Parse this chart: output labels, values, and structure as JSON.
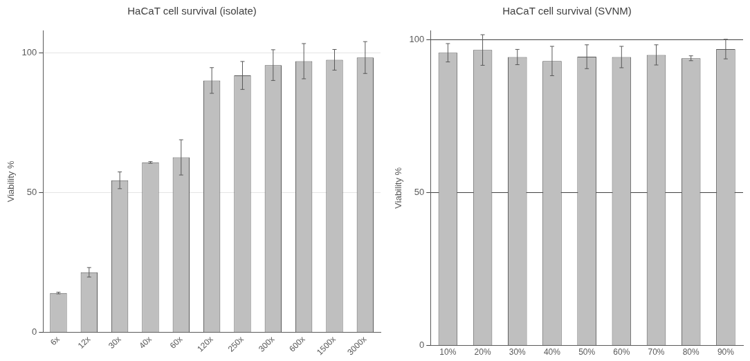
{
  "chart_data": [
    {
      "type": "bar",
      "title": "HaCaT cell survival (isolate)",
      "ylabel": "Viability %",
      "categories": [
        "6x",
        "12x",
        "30x",
        "40x",
        "60x",
        "120x",
        "250x",
        "300x",
        "600x",
        "1500x",
        "3000x"
      ],
      "series": [
        {
          "color": "#bfbfbf",
          "values": [
            14.1,
            21.5,
            54.4,
            60.8,
            62.6,
            90.1,
            91.9,
            95.6,
            97,
            97.5,
            98.3
          ],
          "errors": [
            0.3,
            1.7,
            3,
            0.3,
            6.3,
            4.6,
            5,
            5.5,
            6.3,
            3.7,
            5.7
          ]
        }
      ],
      "ylim": [
        0,
        108
      ],
      "yticks": [
        0,
        50,
        100
      ],
      "grid": "y",
      "legend": false
    },
    {
      "type": "bar",
      "title": "HaCaT cell survival (SVNM)",
      "ylabel": "Viability %",
      "categories": [
        "10%",
        "20%",
        "30%",
        "40%",
        "50%",
        "60%",
        "70%",
        "80%",
        "90%"
      ],
      "series": [
        {
          "color": "#bfbfbf",
          "values": [
            95.7,
            96.6,
            94.3,
            93,
            94.4,
            94.3,
            95,
            93.9,
            96.9
          ],
          "errors": [
            3,
            5,
            2.5,
            4.8,
            3.9,
            3.5,
            3.3,
            0.8,
            3.2
          ]
        }
      ],
      "ylim": [
        0,
        103
      ],
      "yticks": [
        0,
        50,
        100
      ],
      "grid": "y",
      "legend": false
    }
  ]
}
